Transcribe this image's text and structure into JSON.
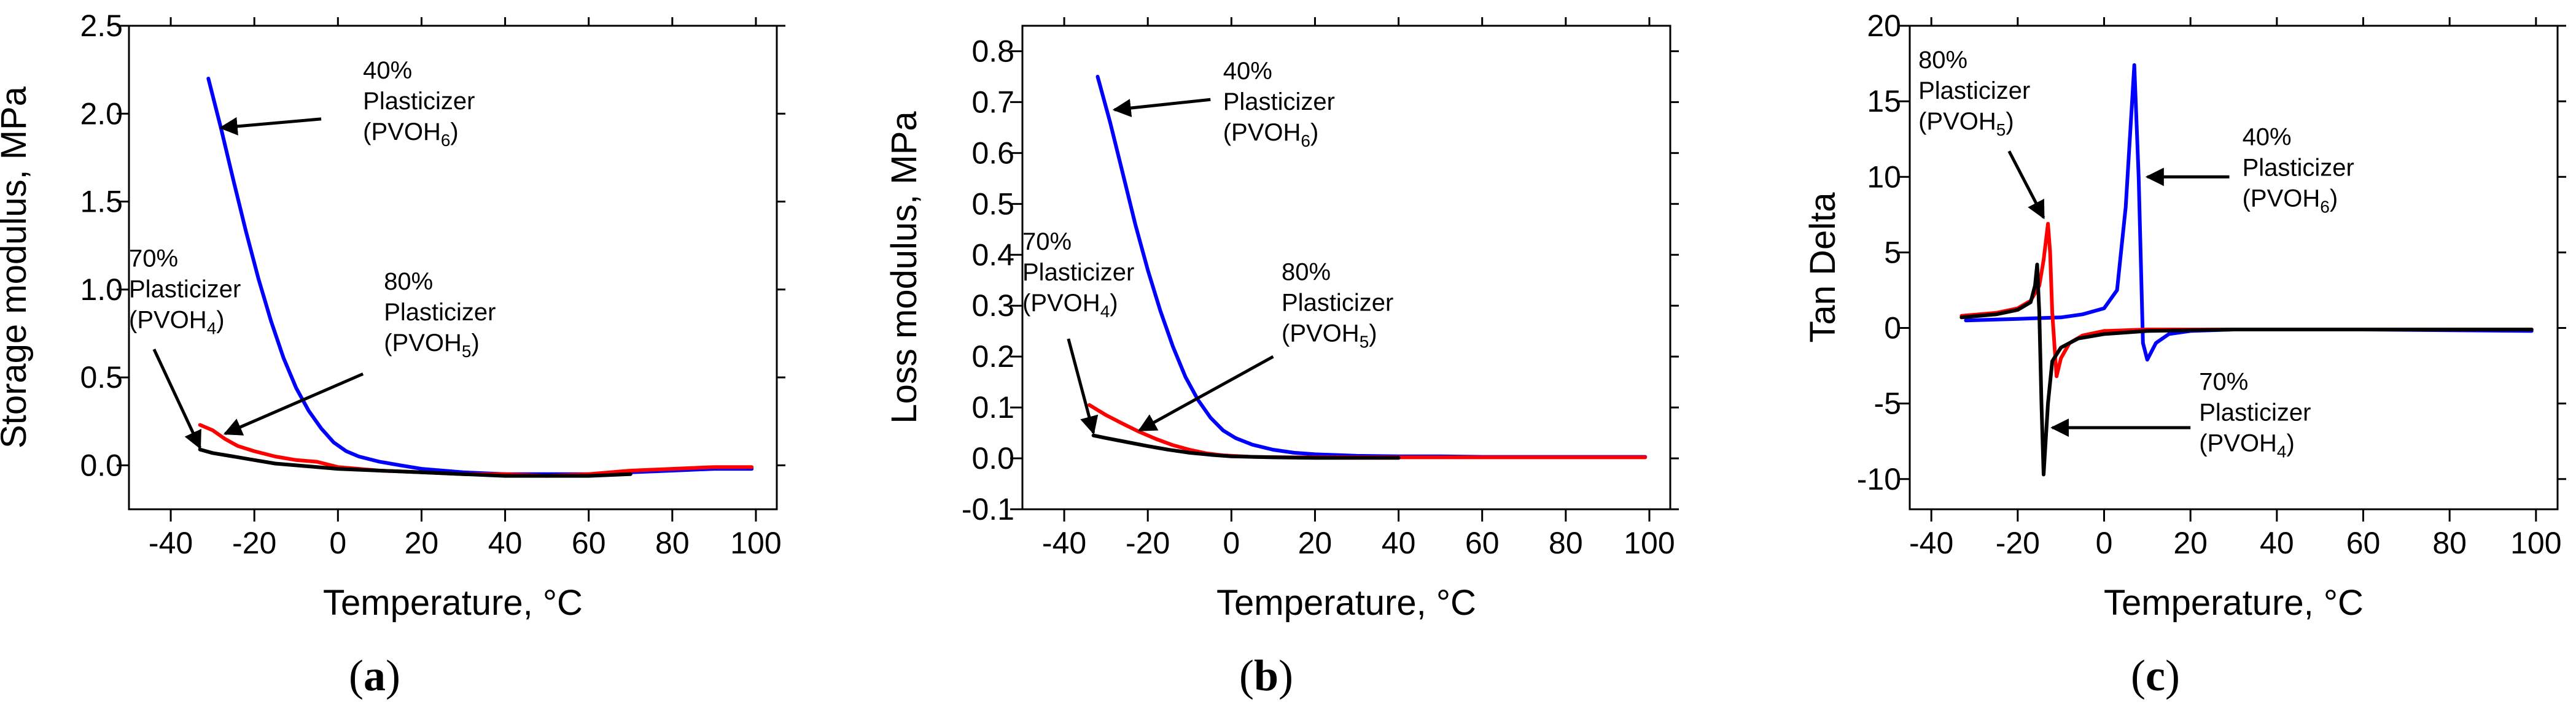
{
  "chart_data": [
    {
      "type": "line",
      "panel_label": {
        "open": "(",
        "letter": "a",
        "close": ")"
      },
      "xlabel": "Temperature, °C",
      "ylabel": "Storage modulus, MPa",
      "xlim": [
        -50,
        105
      ],
      "ylim": [
        -0.25,
        2.5
      ],
      "xticks": [
        -40,
        -20,
        0,
        20,
        40,
        60,
        80,
        100
      ],
      "yticks": [
        0.0,
        0.5,
        1.0,
        1.5,
        2.0,
        2.5
      ],
      "ytick_labels": [
        "0.0",
        "0.5",
        "1.0",
        "1.5",
        "2.0",
        "2.5"
      ],
      "series": [
        {
          "color": "#0000ff",
          "x": [
            -31,
            -28,
            -25,
            -22,
            -19,
            -16,
            -13,
            -10,
            -7,
            -4,
            -1,
            2,
            5,
            10,
            15,
            20,
            30,
            40,
            50,
            60,
            70,
            80,
            90,
            99
          ],
          "y": [
            2.2,
            1.92,
            1.62,
            1.33,
            1.06,
            0.82,
            0.61,
            0.44,
            0.31,
            0.21,
            0.13,
            0.08,
            0.05,
            0.02,
            0.0,
            -0.02,
            -0.04,
            -0.05,
            -0.05,
            -0.05,
            -0.04,
            -0.03,
            -0.02,
            -0.02
          ]
        },
        {
          "color": "#ff0000",
          "x": [
            -33,
            -30,
            -27,
            -24,
            -20,
            -15,
            -10,
            -5,
            0,
            10,
            20,
            30,
            40,
            50,
            60,
            70,
            80,
            90,
            99
          ],
          "y": [
            0.23,
            0.2,
            0.15,
            0.11,
            0.08,
            0.05,
            0.03,
            0.02,
            -0.01,
            -0.03,
            -0.04,
            -0.05,
            -0.05,
            -0.06,
            -0.05,
            -0.03,
            -0.02,
            -0.01,
            -0.01
          ]
        },
        {
          "color": "#000000",
          "x": [
            -33,
            -30,
            -25,
            -20,
            -15,
            -10,
            -5,
            0,
            10,
            20,
            30,
            40,
            50,
            60,
            70
          ],
          "y": [
            0.09,
            0.07,
            0.05,
            0.03,
            0.01,
            0.0,
            -0.01,
            -0.02,
            -0.03,
            -0.04,
            -0.05,
            -0.06,
            -0.06,
            -0.06,
            -0.05
          ]
        }
      ],
      "annotations": [
        {
          "percent": "40%",
          "word": "Plasticizer",
          "formula": "(PVOH",
          "sub": "6",
          "close": ")",
          "text_at": [
            6,
            2.2
          ],
          "anchor": "start",
          "arrow_from": [
            -4,
            1.97
          ],
          "arrow_to": [
            -28,
            1.92
          ]
        },
        {
          "percent": "70%",
          "word": "Plasticizer",
          "formula": "(PVOH",
          "sub": "4",
          "close": ")",
          "text_at": [
            -50,
            1.13
          ],
          "anchor": "start",
          "arrow_from": [
            -44,
            0.66
          ],
          "arrow_to": [
            -33,
            0.1
          ]
        },
        {
          "percent": "80%",
          "word": "Plasticizer",
          "formula": "(PVOH",
          "sub": "5",
          "close": ")",
          "text_at": [
            11,
            1.0
          ],
          "anchor": "start",
          "arrow_from": [
            6,
            0.52
          ],
          "arrow_to": [
            -27,
            0.18
          ]
        }
      ]
    },
    {
      "type": "line",
      "panel_label": {
        "open": "(",
        "letter": "b",
        "close": ")"
      },
      "xlabel": "Temperature, °C",
      "ylabel": "Loss modulus, MPa",
      "xlim": [
        -50,
        105
      ],
      "ylim": [
        -0.1,
        0.85
      ],
      "xticks": [
        -40,
        -20,
        0,
        20,
        40,
        60,
        80,
        100
      ],
      "yticks": [
        -0.1,
        0.0,
        0.1,
        0.2,
        0.3,
        0.4,
        0.5,
        0.6,
        0.7,
        0.8
      ],
      "ytick_labels": [
        "-0.1",
        "0.0",
        "0.1",
        "0.2",
        "0.3",
        "0.4",
        "0.5",
        "0.6",
        "0.7",
        "0.8"
      ],
      "series": [
        {
          "color": "#0000ff",
          "x": [
            -32,
            -29,
            -26,
            -23,
            -20,
            -17,
            -14,
            -11,
            -8,
            -5,
            -2,
            1,
            5,
            10,
            15,
            20,
            30,
            40,
            50,
            60,
            70,
            80,
            90,
            99
          ],
          "y": [
            0.75,
            0.66,
            0.56,
            0.46,
            0.37,
            0.29,
            0.22,
            0.16,
            0.115,
            0.08,
            0.055,
            0.04,
            0.027,
            0.017,
            0.011,
            0.008,
            0.005,
            0.004,
            0.004,
            0.003,
            0.003,
            0.003,
            0.003,
            0.003
          ]
        },
        {
          "color": "#ff0000",
          "x": [
            -34,
            -30,
            -26,
            -22,
            -18,
            -14,
            -10,
            -6,
            -2,
            5,
            15,
            30,
            50,
            70,
            90,
            99
          ],
          "y": [
            0.105,
            0.085,
            0.068,
            0.052,
            0.038,
            0.026,
            0.017,
            0.01,
            0.006,
            0.003,
            0.002,
            0.002,
            0.002,
            0.002,
            0.002,
            0.002
          ]
        },
        {
          "color": "#000000",
          "x": [
            -33,
            -30,
            -25,
            -20,
            -15,
            -10,
            -5,
            0,
            10,
            20,
            30,
            40
          ],
          "y": [
            0.045,
            0.04,
            0.032,
            0.024,
            0.017,
            0.011,
            0.007,
            0.004,
            0.002,
            0.001,
            0.001,
            0.001
          ]
        }
      ],
      "annotations": [
        {
          "percent": "40%",
          "word": "Plasticizer",
          "formula": "(PVOH",
          "sub": "6",
          "close": ")",
          "text_at": [
            -2,
            0.745
          ],
          "anchor": "start",
          "arrow_from": [
            -5,
            0.705
          ],
          "arrow_to": [
            -28,
            0.685
          ]
        },
        {
          "percent": "70%",
          "word": "Plasticizer",
          "formula": "(PVOH",
          "sub": "4",
          "close": ")",
          "text_at": [
            -50,
            0.41
          ],
          "anchor": "start",
          "arrow_from": [
            -39,
            0.235
          ],
          "arrow_to": [
            -33,
            0.05
          ]
        },
        {
          "percent": "80%",
          "word": "Plasticizer",
          "formula": "(PVOH",
          "sub": "5",
          "close": ")",
          "text_at": [
            12,
            0.35
          ],
          "anchor": "start",
          "arrow_from": [
            10,
            0.2
          ],
          "arrow_to": [
            -22,
            0.055
          ]
        }
      ]
    },
    {
      "type": "line",
      "panel_label": {
        "open": "(",
        "letter": "c",
        "close": ")"
      },
      "xlabel": "Temperature, °C",
      "ylabel": "Tan Delta",
      "xlim": [
        -45,
        105
      ],
      "ylim": [
        -12,
        20
      ],
      "xticks": [
        -40,
        -20,
        0,
        20,
        40,
        60,
        80,
        100
      ],
      "yticks": [
        -10,
        -5,
        0,
        5,
        10,
        15,
        20
      ],
      "ytick_labels": [
        "-10",
        "-5",
        "0",
        "5",
        "10",
        "15",
        "20"
      ],
      "series": [
        {
          "color": "#0000ff",
          "x": [
            -32,
            -20,
            -10,
            -5,
            0,
            3,
            5,
            7,
            8,
            9,
            10,
            12,
            15,
            20,
            30,
            60,
            99
          ],
          "y": [
            0.5,
            0.6,
            0.7,
            0.9,
            1.3,
            2.5,
            8.0,
            17.4,
            10.0,
            -1.0,
            -2.1,
            -1.0,
            -0.4,
            -0.2,
            -0.1,
            -0.1,
            -0.2
          ]
        },
        {
          "color": "#ff0000",
          "x": [
            -33,
            -25,
            -20,
            -17,
            -15,
            -14,
            -13,
            -12.5,
            -12,
            -11,
            -10,
            -8,
            -5,
            0,
            10,
            30,
            60,
            99
          ],
          "y": [
            0.8,
            1.0,
            1.3,
            1.8,
            2.8,
            4.5,
            6.9,
            5.0,
            1.0,
            -3.2,
            -2.0,
            -1.0,
            -0.5,
            -0.2,
            -0.1,
            -0.1,
            -0.1,
            -0.1
          ]
        },
        {
          "color": "#000000",
          "x": [
            -33,
            -25,
            -20,
            -17,
            -16,
            -15.5,
            -15,
            -14.5,
            -14,
            -13,
            -12,
            -10,
            -6,
            0,
            10,
            30,
            60,
            99
          ],
          "y": [
            0.7,
            0.9,
            1.2,
            1.7,
            2.8,
            4.2,
            1.0,
            -5.0,
            -9.7,
            -5.0,
            -2.2,
            -1.3,
            -0.7,
            -0.4,
            -0.2,
            -0.1,
            -0.1,
            -0.1
          ]
        }
      ],
      "annotations": [
        {
          "percent": "40%",
          "word": "Plasticizer",
          "formula": "(PVOH",
          "sub": "6",
          "close": ")",
          "text_at": [
            32,
            12.1
          ],
          "anchor": "start",
          "arrow_from": [
            29,
            10.0
          ],
          "arrow_to": [
            10,
            10.0
          ]
        },
        {
          "percent": "80%",
          "word": "Plasticizer",
          "formula": "(PVOH",
          "sub": "5",
          "close": ")",
          "text_at": [
            -43,
            17.2
          ],
          "anchor": "start",
          "arrow_from": [
            -22,
            11.7
          ],
          "arrow_to": [
            -14,
            7.3
          ]
        },
        {
          "percent": "70%",
          "word": "Plasticizer",
          "formula": "(PVOH",
          "sub": "4",
          "close": ")",
          "text_at": [
            22,
            -4.1
          ],
          "anchor": "start",
          "arrow_from": [
            20,
            -6.6
          ],
          "arrow_to": [
            -12,
            -6.6
          ]
        }
      ]
    }
  ]
}
